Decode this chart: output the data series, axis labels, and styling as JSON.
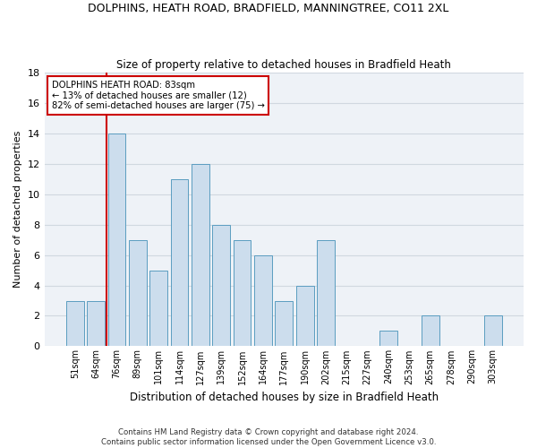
{
  "title1": "DOLPHINS, HEATH ROAD, BRADFIELD, MANNINGTREE, CO11 2XL",
  "title2": "Size of property relative to detached houses in Bradfield Heath",
  "xlabel": "Distribution of detached houses by size in Bradfield Heath",
  "ylabel": "Number of detached properties",
  "footnote1": "Contains HM Land Registry data © Crown copyright and database right 2024.",
  "footnote2": "Contains public sector information licensed under the Open Government Licence v3.0.",
  "annotation_title": "DOLPHINS HEATH ROAD: 83sqm",
  "annotation_line1": "← 13% of detached houses are smaller (12)",
  "annotation_line2": "82% of semi-detached houses are larger (75) →",
  "bar_labels": [
    "51sqm",
    "64sqm",
    "76sqm",
    "89sqm",
    "101sqm",
    "114sqm",
    "127sqm",
    "139sqm",
    "152sqm",
    "164sqm",
    "177sqm",
    "190sqm",
    "202sqm",
    "215sqm",
    "227sqm",
    "240sqm",
    "253sqm",
    "265sqm",
    "278sqm",
    "290sqm",
    "303sqm"
  ],
  "bar_values": [
    3,
    3,
    14,
    7,
    5,
    11,
    12,
    8,
    7,
    6,
    3,
    4,
    7,
    0,
    0,
    1,
    0,
    2,
    0,
    0,
    2
  ],
  "bar_color": "#ccdded",
  "bar_edge_color": "#5a9dc0",
  "vline_color": "#cc0000",
  "vline_x_index": 2,
  "ylim": [
    0,
    18
  ],
  "yticks": [
    0,
    2,
    4,
    6,
    8,
    10,
    12,
    14,
    16,
    18
  ],
  "annotation_box_color": "#cc0000",
  "background_color": "#eef2f7",
  "grid_color": "#d0d8e0",
  "bar_width": 0.85
}
